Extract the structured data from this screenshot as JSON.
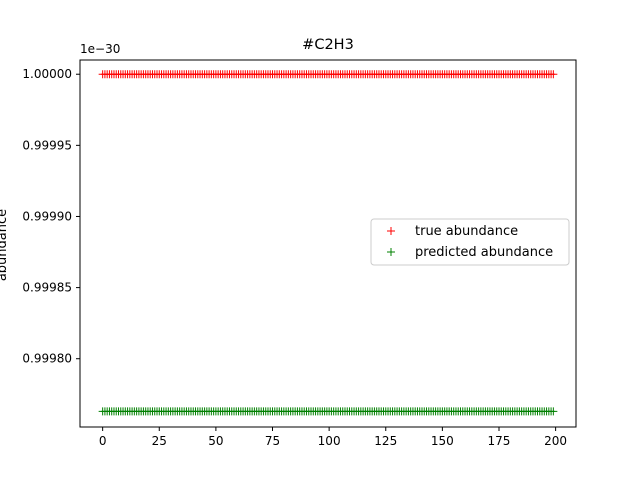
{
  "chart_data": {
    "type": "scatter",
    "title": "#C2H3",
    "xlabel": "",
    "ylabel": "abundance",
    "offset_text": "1e−30",
    "xlim": [
      -10,
      209
    ],
    "ylim": [
      0.999752,
      1.00001
    ],
    "x_ticks": [
      0,
      25,
      50,
      75,
      100,
      125,
      150,
      175,
      200
    ],
    "x_tick_labels": [
      "0",
      "25",
      "50",
      "75",
      "100",
      "125",
      "150",
      "175",
      "200"
    ],
    "y_ticks": [
      0.9998,
      0.99985,
      0.9999,
      0.99995,
      1.0
    ],
    "y_tick_labels": [
      "0.99980",
      "0.99985",
      "0.99990",
      "0.99995",
      "1.00000"
    ],
    "grid": false,
    "legend_position": "center-right",
    "x": {
      "start": 0,
      "end": 199,
      "step": 1
    },
    "series": [
      {
        "name": "true abundance",
        "marker": "+",
        "color": "#ff0000",
        "constant_value": 1.0
      },
      {
        "name": "predicted abundance",
        "marker": "+",
        "color": "#008000",
        "constant_value": 0.999763
      }
    ]
  }
}
